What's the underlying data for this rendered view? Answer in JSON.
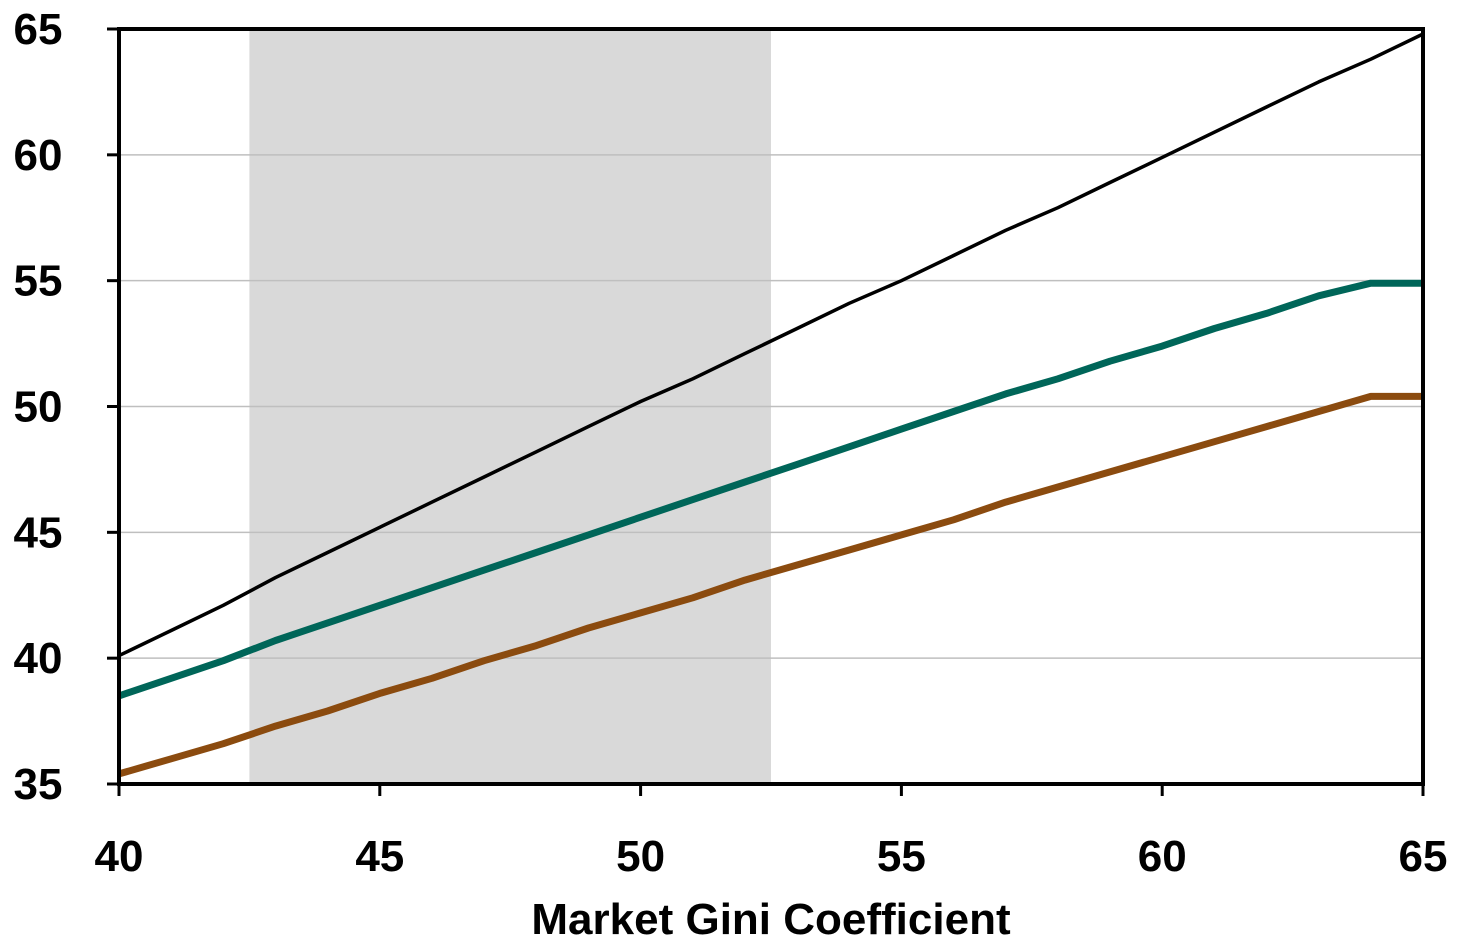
{
  "chart_data": {
    "type": "line",
    "xlabel": "Market Gini Coefficient",
    "ylabel": "",
    "xlim": [
      40,
      65
    ],
    "ylim": [
      35,
      65
    ],
    "x_ticks": [
      "40",
      "45",
      "50",
      "55",
      "60",
      "65"
    ],
    "y_ticks": [
      "35",
      "40",
      "45",
      "50",
      "55",
      "60",
      "65"
    ],
    "grid": "horizontal",
    "shaded_range": {
      "x": [
        42.5,
        52.5
      ],
      "color": "#d9d9d9"
    },
    "series": [
      {
        "color": "#000000",
        "x": [
          40,
          41,
          42,
          43,
          44,
          45,
          46,
          47,
          48,
          49,
          50,
          51,
          52,
          53,
          54,
          55,
          56,
          57,
          58,
          59,
          60,
          61,
          62,
          63,
          64,
          65
        ],
        "y": [
          40.1,
          41.1,
          42.1,
          43.2,
          44.2,
          45.2,
          46.2,
          47.2,
          48.2,
          49.2,
          50.2,
          51.1,
          52.1,
          53.1,
          54.1,
          55.0,
          56.0,
          57.0,
          57.9,
          58.9,
          59.9,
          60.9,
          61.9,
          62.9,
          63.8,
          64.8
        ]
      },
      {
        "color": "#006659",
        "x": [
          40,
          41,
          42,
          43,
          44,
          45,
          46,
          47,
          48,
          49,
          50,
          51,
          52,
          53,
          54,
          55,
          56,
          57,
          58,
          59,
          60,
          61,
          62,
          63,
          64,
          65
        ],
        "y": [
          38.5,
          39.2,
          39.9,
          40.7,
          41.4,
          42.1,
          42.8,
          43.5,
          44.2,
          44.9,
          45.6,
          46.3,
          47.0,
          47.7,
          48.4,
          49.1,
          49.8,
          50.5,
          51.1,
          51.8,
          52.4,
          53.1,
          53.7,
          54.4,
          54.9,
          54.9
        ]
      },
      {
        "color": "#8b4b0f",
        "x": [
          40,
          41,
          42,
          43,
          44,
          45,
          46,
          47,
          48,
          49,
          50,
          51,
          52,
          53,
          54,
          55,
          56,
          57,
          58,
          59,
          60,
          61,
          62,
          63,
          64,
          65
        ],
        "y": [
          35.4,
          36.0,
          36.6,
          37.3,
          37.9,
          38.6,
          39.2,
          39.9,
          40.5,
          41.2,
          41.8,
          42.4,
          43.1,
          43.7,
          44.3,
          44.9,
          45.5,
          46.2,
          46.8,
          47.4,
          48.0,
          48.6,
          49.2,
          49.8,
          50.4,
          50.4
        ]
      }
    ]
  }
}
